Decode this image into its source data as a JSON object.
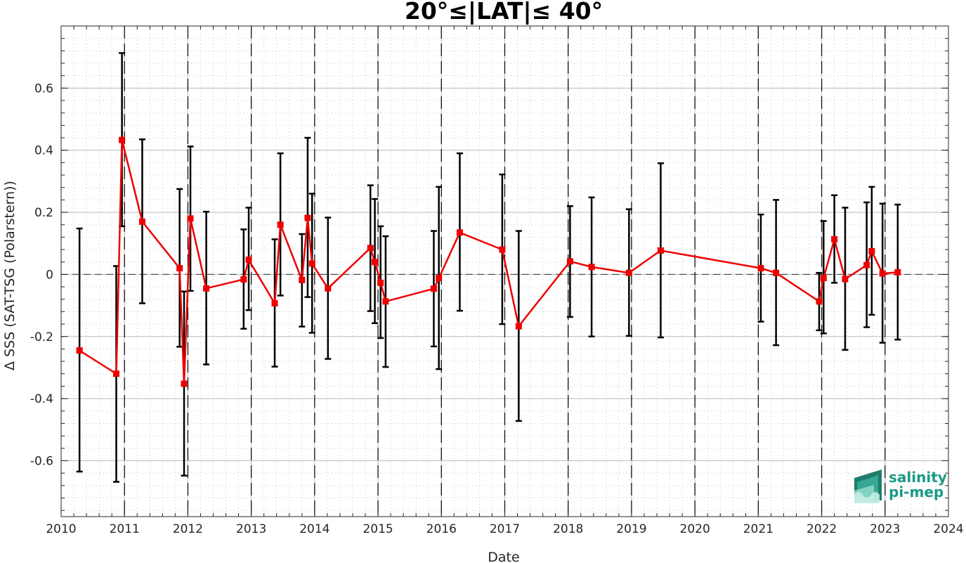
{
  "chart_data": {
    "type": "line",
    "title": "20°≤|LAT|≤ 40°",
    "xlabel": "Date",
    "ylabel": "Δ SSS (SAT-TSG (Polarstern))",
    "xlim": [
      2010,
      2024
    ],
    "ylim": [
      -0.78,
      0.8
    ],
    "xticks": [
      "2010",
      "2011",
      "2012",
      "2013",
      "2014",
      "2015",
      "2016",
      "2017",
      "2018",
      "2019",
      "2020",
      "2021",
      "2022",
      "2023",
      "2024"
    ],
    "yticks": [
      "-0.6",
      "-0.4",
      "-0.2",
      "0",
      "0.2",
      "0.4",
      "0.6"
    ],
    "ytick_values": [
      -0.6,
      -0.4,
      -0.2,
      0,
      0.2,
      0.4,
      0.6
    ],
    "grid": "minor dotted",
    "year_boundaries": "dashed vertical",
    "zero_line": "dashed horizontal",
    "series": [
      {
        "color": "#ee0000",
        "marker": "square",
        "error_bar_color": "#000000",
        "points": [
          {
            "x": 2010.29,
            "y": -0.245,
            "lo": -0.635,
            "hi": 0.148
          },
          {
            "x": 2010.87,
            "y": -0.32,
            "lo": -0.668,
            "hi": 0.027
          },
          {
            "x": 2010.96,
            "y": 0.433,
            "lo": 0.155,
            "hi": 0.713
          },
          {
            "x": 2011.28,
            "y": 0.17,
            "lo": -0.093,
            "hi": 0.435
          },
          {
            "x": 2011.87,
            "y": 0.02,
            "lo": -0.233,
            "hi": 0.275
          },
          {
            "x": 2011.94,
            "y": -0.352,
            "lo": -0.648,
            "hi": -0.055
          },
          {
            "x": 2012.04,
            "y": 0.18,
            "lo": -0.053,
            "hi": 0.412
          },
          {
            "x": 2012.29,
            "y": -0.045,
            "lo": -0.29,
            "hi": 0.202
          },
          {
            "x": 2012.88,
            "y": -0.016,
            "lo": -0.175,
            "hi": 0.145
          },
          {
            "x": 2012.96,
            "y": 0.047,
            "lo": -0.115,
            "hi": 0.215
          },
          {
            "x": 2013.37,
            "y": -0.093,
            "lo": -0.297,
            "hi": 0.113
          },
          {
            "x": 2013.46,
            "y": 0.16,
            "lo": -0.068,
            "hi": 0.39
          },
          {
            "x": 2013.8,
            "y": -0.018,
            "lo": -0.168,
            "hi": 0.13
          },
          {
            "x": 2013.89,
            "y": 0.182,
            "lo": -0.073,
            "hi": 0.44
          },
          {
            "x": 2013.96,
            "y": 0.035,
            "lo": -0.188,
            "hi": 0.26
          },
          {
            "x": 2014.21,
            "y": -0.045,
            "lo": -0.272,
            "hi": 0.183
          },
          {
            "x": 2014.88,
            "y": 0.085,
            "lo": -0.118,
            "hi": 0.287
          },
          {
            "x": 2014.95,
            "y": 0.04,
            "lo": -0.157,
            "hi": 0.243
          },
          {
            "x": 2015.04,
            "y": -0.027,
            "lo": -0.205,
            "hi": 0.155
          },
          {
            "x": 2015.12,
            "y": -0.087,
            "lo": -0.298,
            "hi": 0.123
          },
          {
            "x": 2015.88,
            "y": -0.046,
            "lo": -0.232,
            "hi": 0.14
          },
          {
            "x": 2015.96,
            "y": -0.012,
            "lo": -0.305,
            "hi": 0.282
          },
          {
            "x": 2016.29,
            "y": 0.135,
            "lo": -0.117,
            "hi": 0.39
          },
          {
            "x": 2016.96,
            "y": 0.08,
            "lo": -0.16,
            "hi": 0.322
          },
          {
            "x": 2017.22,
            "y": -0.167,
            "lo": -0.472,
            "hi": 0.14
          },
          {
            "x": 2018.03,
            "y": 0.042,
            "lo": -0.137,
            "hi": 0.22
          },
          {
            "x": 2018.37,
            "y": 0.024,
            "lo": -0.2,
            "hi": 0.248
          },
          {
            "x": 2018.96,
            "y": 0.005,
            "lo": -0.198,
            "hi": 0.21
          },
          {
            "x": 2019.46,
            "y": 0.077,
            "lo": -0.203,
            "hi": 0.358
          },
          {
            "x": 2021.04,
            "y": 0.02,
            "lo": -0.152,
            "hi": 0.193
          },
          {
            "x": 2021.28,
            "y": 0.005,
            "lo": -0.228,
            "hi": 0.24
          },
          {
            "x": 2021.96,
            "y": -0.087,
            "lo": -0.18,
            "hi": 0.005
          },
          {
            "x": 2022.03,
            "y": -0.012,
            "lo": -0.19,
            "hi": 0.172
          },
          {
            "x": 2022.2,
            "y": 0.113,
            "lo": -0.027,
            "hi": 0.255
          },
          {
            "x": 2022.37,
            "y": -0.015,
            "lo": -0.243,
            "hi": 0.215
          },
          {
            "x": 2022.71,
            "y": 0.03,
            "lo": -0.17,
            "hi": 0.232
          },
          {
            "x": 2022.79,
            "y": 0.075,
            "lo": -0.13,
            "hi": 0.282
          },
          {
            "x": 2022.96,
            "y": 0.003,
            "lo": -0.22,
            "hi": 0.228
          },
          {
            "x": 2023.2,
            "y": 0.007,
            "lo": -0.21,
            "hi": 0.225
          }
        ]
      }
    ]
  },
  "logo": {
    "line1": "salinity",
    "line2": "pi-mep",
    "color": "#1a9a86"
  }
}
